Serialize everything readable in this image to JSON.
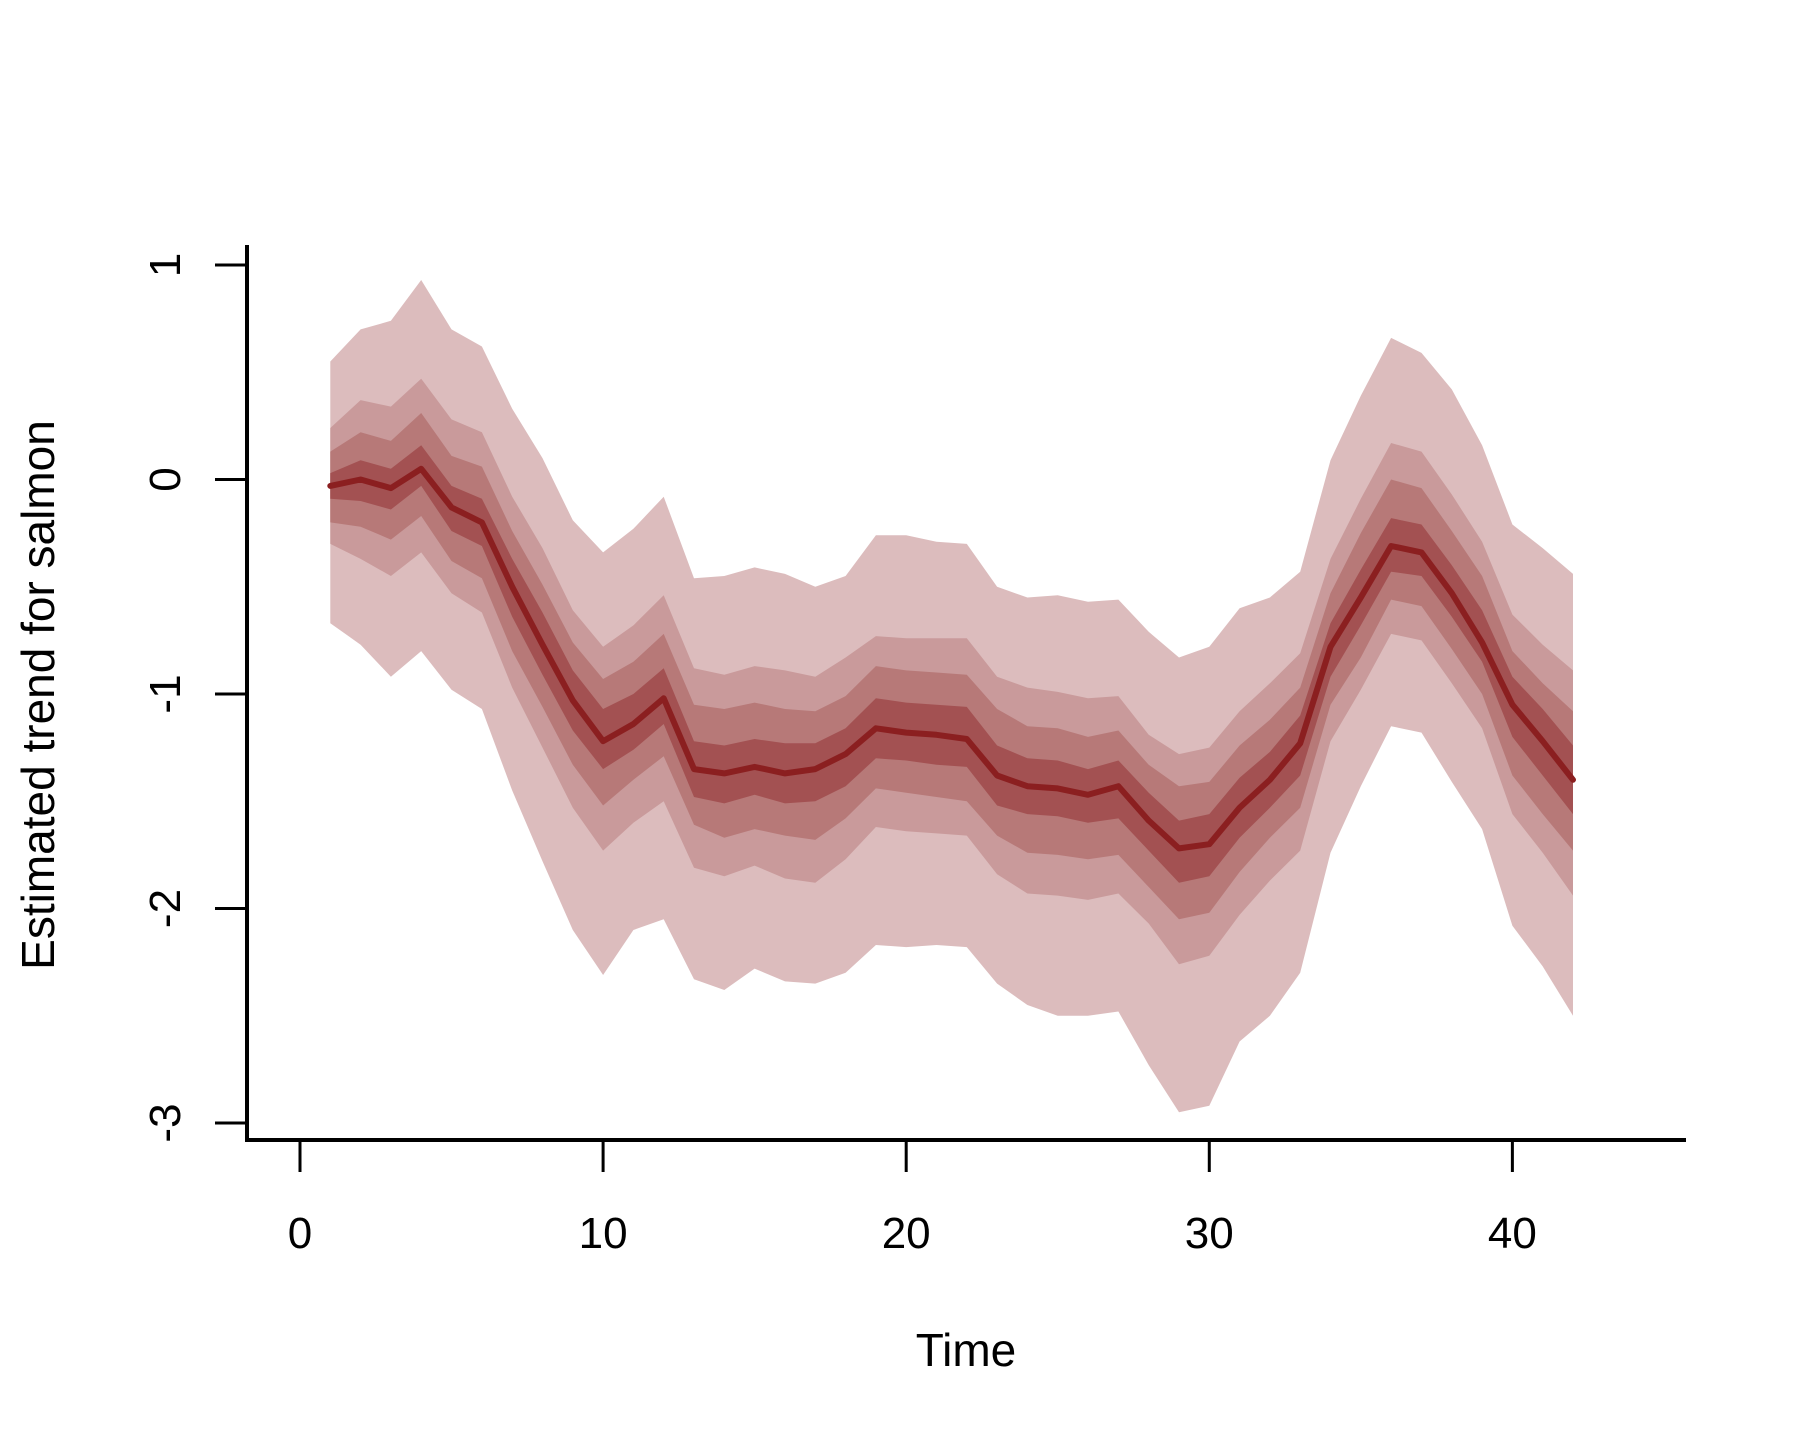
{
  "chart_data": {
    "type": "area",
    "title": "",
    "xlabel": "Time",
    "ylabel": "Estimated trend for salmon",
    "xlim": [
      -2,
      44
    ],
    "ylim": [
      -3.1,
      1.1
    ],
    "xticks": [
      0,
      10,
      20,
      30,
      40
    ],
    "yticks": [
      -3,
      -2,
      -1,
      0,
      1
    ],
    "xtick_labels": [
      "0",
      "10",
      "20",
      "30",
      "40"
    ],
    "ytick_labels": [
      "-3",
      "-2",
      "-1",
      "0",
      "1"
    ],
    "x": [
      1,
      2,
      3,
      4,
      5,
      6,
      7,
      8,
      9,
      10,
      11,
      12,
      13,
      14,
      15,
      16,
      17,
      18,
      19,
      20,
      21,
      22,
      23,
      24,
      25,
      26,
      27,
      28,
      29,
      30,
      31,
      32,
      33,
      34,
      35,
      36,
      37,
      38,
      39,
      40,
      41,
      42
    ],
    "median": [
      -0.03,
      0.0,
      -0.04,
      0.05,
      -0.13,
      -0.2,
      -0.5,
      -0.77,
      -1.03,
      -1.22,
      -1.14,
      -1.02,
      -1.35,
      -1.37,
      -1.34,
      -1.37,
      -1.35,
      -1.28,
      -1.16,
      -1.18,
      -1.19,
      -1.21,
      -1.38,
      -1.43,
      -1.44,
      -1.47,
      -1.43,
      -1.59,
      -1.72,
      -1.7,
      -1.53,
      -1.4,
      -1.23,
      -0.78,
      -0.55,
      -0.31,
      -0.34,
      -0.53,
      -0.76,
      -1.05,
      -1.22,
      -1.4
    ],
    "bands": [
      {
        "name": "outer",
        "color": "#dcbcbd",
        "lower": [
          -0.67,
          -0.77,
          -0.92,
          -0.8,
          -0.98,
          -1.07,
          -1.45,
          -1.78,
          -2.1,
          -2.31,
          -2.1,
          -2.05,
          -2.33,
          -2.38,
          -2.28,
          -2.34,
          -2.35,
          -2.3,
          -2.17,
          -2.18,
          -2.17,
          -2.18,
          -2.35,
          -2.45,
          -2.5,
          -2.5,
          -2.48,
          -2.73,
          -2.95,
          -2.92,
          -2.62,
          -2.5,
          -2.3,
          -1.74,
          -1.43,
          -1.15,
          -1.18,
          -1.41,
          -1.63,
          -2.08,
          -2.27,
          -2.5
        ],
        "upper": [
          0.55,
          0.7,
          0.74,
          0.93,
          0.7,
          0.62,
          0.33,
          0.1,
          -0.19,
          -0.34,
          -0.23,
          -0.08,
          -0.46,
          -0.45,
          -0.41,
          -0.44,
          -0.5,
          -0.45,
          -0.26,
          -0.26,
          -0.29,
          -0.3,
          -0.5,
          -0.55,
          -0.54,
          -0.57,
          -0.56,
          -0.71,
          -0.83,
          -0.78,
          -0.6,
          -0.55,
          -0.43,
          0.09,
          0.39,
          0.66,
          0.59,
          0.42,
          0.16,
          -0.21,
          -0.32,
          -0.44
        ]
      },
      {
        "name": "mid",
        "color": "#c99a9b",
        "lower": [
          -0.3,
          -0.37,
          -0.45,
          -0.34,
          -0.53,
          -0.62,
          -0.97,
          -1.25,
          -1.53,
          -1.73,
          -1.6,
          -1.5,
          -1.81,
          -1.85,
          -1.8,
          -1.86,
          -1.88,
          -1.77,
          -1.62,
          -1.64,
          -1.65,
          -1.66,
          -1.84,
          -1.93,
          -1.94,
          -1.96,
          -1.93,
          -2.07,
          -2.26,
          -2.22,
          -2.03,
          -1.87,
          -1.73,
          -1.22,
          -0.98,
          -0.72,
          -0.75,
          -0.95,
          -1.16,
          -1.56,
          -1.74,
          -1.94
        ],
        "upper": [
          0.24,
          0.37,
          0.34,
          0.47,
          0.28,
          0.22,
          -0.08,
          -0.32,
          -0.61,
          -0.78,
          -0.68,
          -0.54,
          -0.88,
          -0.91,
          -0.87,
          -0.89,
          -0.92,
          -0.83,
          -0.73,
          -0.74,
          -0.74,
          -0.74,
          -0.92,
          -0.97,
          -0.99,
          -1.02,
          -1.01,
          -1.19,
          -1.28,
          -1.25,
          -1.08,
          -0.95,
          -0.81,
          -0.37,
          -0.09,
          0.17,
          0.13,
          -0.07,
          -0.29,
          -0.63,
          -0.77,
          -0.89
        ]
      },
      {
        "name": "inner",
        "color": "#b77978",
        "lower": [
          -0.2,
          -0.22,
          -0.28,
          -0.17,
          -0.38,
          -0.46,
          -0.8,
          -1.06,
          -1.33,
          -1.52,
          -1.4,
          -1.29,
          -1.61,
          -1.67,
          -1.63,
          -1.66,
          -1.68,
          -1.58,
          -1.44,
          -1.46,
          -1.48,
          -1.5,
          -1.66,
          -1.74,
          -1.75,
          -1.77,
          -1.75,
          -1.9,
          -2.05,
          -2.02,
          -1.83,
          -1.67,
          -1.53,
          -1.05,
          -0.83,
          -0.56,
          -0.59,
          -0.79,
          -1.0,
          -1.38,
          -1.56,
          -1.73
        ],
        "upper": [
          0.13,
          0.22,
          0.18,
          0.31,
          0.11,
          0.06,
          -0.24,
          -0.49,
          -0.76,
          -0.93,
          -0.85,
          -0.72,
          -1.05,
          -1.07,
          -1.04,
          -1.07,
          -1.08,
          -1.01,
          -0.87,
          -0.89,
          -0.9,
          -0.91,
          -1.07,
          -1.15,
          -1.16,
          -1.2,
          -1.17,
          -1.33,
          -1.43,
          -1.41,
          -1.24,
          -1.12,
          -0.97,
          -0.53,
          -0.25,
          0.0,
          -0.04,
          -0.24,
          -0.45,
          -0.8,
          -0.95,
          -1.08
        ]
      },
      {
        "name": "core",
        "color": "#a35152",
        "lower": [
          -0.09,
          -0.1,
          -0.14,
          -0.03,
          -0.24,
          -0.31,
          -0.64,
          -0.91,
          -1.17,
          -1.35,
          -1.26,
          -1.14,
          -1.48,
          -1.51,
          -1.47,
          -1.51,
          -1.5,
          -1.43,
          -1.3,
          -1.31,
          -1.33,
          -1.34,
          -1.52,
          -1.56,
          -1.57,
          -1.6,
          -1.58,
          -1.73,
          -1.88,
          -1.85,
          -1.67,
          -1.53,
          -1.38,
          -0.92,
          -0.68,
          -0.43,
          -0.45,
          -0.64,
          -0.85,
          -1.2,
          -1.38,
          -1.56
        ],
        "upper": [
          0.03,
          0.09,
          0.05,
          0.16,
          -0.03,
          -0.09,
          -0.37,
          -0.62,
          -0.89,
          -1.07,
          -1.0,
          -0.88,
          -1.22,
          -1.24,
          -1.21,
          -1.23,
          -1.23,
          -1.16,
          -1.02,
          -1.04,
          -1.05,
          -1.06,
          -1.24,
          -1.3,
          -1.31,
          -1.35,
          -1.31,
          -1.46,
          -1.59,
          -1.56,
          -1.39,
          -1.27,
          -1.1,
          -0.67,
          -0.42,
          -0.18,
          -0.21,
          -0.4,
          -0.61,
          -0.92,
          -1.07,
          -1.24
        ]
      }
    ],
    "line_color": "#8b1f20",
    "grid": false,
    "legend": "none"
  }
}
